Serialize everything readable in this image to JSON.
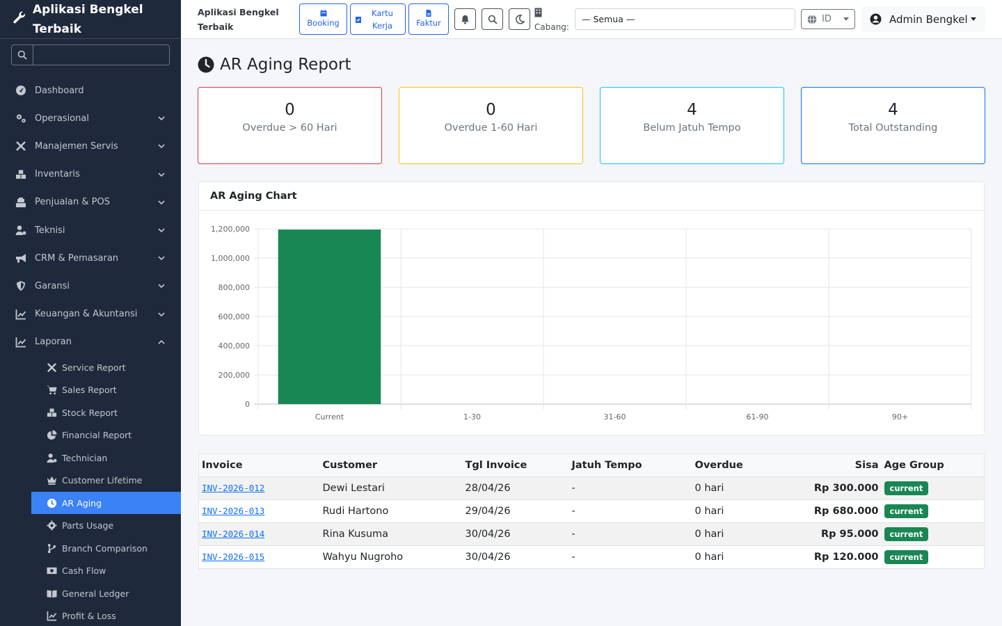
{
  "sidebar": {
    "brand": "Aplikasi Bengkel Terbaik",
    "search_placeholder": "",
    "items": [
      {
        "label": "Dashboard"
      },
      {
        "label": "Operasional"
      },
      {
        "label": "Manajemen Servis"
      },
      {
        "label": "Inventaris"
      },
      {
        "label": "Penjualan & POS"
      },
      {
        "label": "Teknisi"
      },
      {
        "label": "CRM & Pemasaran"
      },
      {
        "label": "Garansi"
      },
      {
        "label": "Keuangan & Akuntansi"
      },
      {
        "label": "Laporan"
      }
    ],
    "sub_items": [
      {
        "label": "Service Report"
      },
      {
        "label": "Sales Report"
      },
      {
        "label": "Stock Report"
      },
      {
        "label": "Financial Report"
      },
      {
        "label": "Technician"
      },
      {
        "label": "Customer Lifetime"
      },
      {
        "label": "AR Aging"
      },
      {
        "label": "Parts Usage"
      },
      {
        "label": "Branch Comparison"
      },
      {
        "label": "Cash Flow"
      },
      {
        "label": "General Ledger"
      },
      {
        "label": "Profit & Loss"
      }
    ]
  },
  "topbar": {
    "title": "Aplikasi Bengkel Terbaik",
    "quick": [
      {
        "label": "Booking"
      },
      {
        "label": "Kartu Kerja"
      },
      {
        "label": "Faktur"
      }
    ],
    "cabang_label": "Cabang:",
    "cabang_value": "— Semua —",
    "lang": "ID",
    "user": "Admin Bengkel"
  },
  "page": {
    "title": "AR Aging Report",
    "stats": [
      {
        "value": "0",
        "label": "Overdue > 60 Hari",
        "color": "#dc3545"
      },
      {
        "value": "0",
        "label": "Overdue 1-60 Hari",
        "color": "#ffc107"
      },
      {
        "value": "4",
        "label": "Belum Jatuh Tempo",
        "color": "#0dcaf0"
      },
      {
        "value": "4",
        "label": "Total Outstanding",
        "color": "#0d6efd"
      }
    ],
    "chart_title": "AR Aging Chart"
  },
  "chart_data": {
    "type": "bar",
    "categories": [
      "Current",
      "1-30",
      "31-60",
      "61-90",
      "90+"
    ],
    "values": [
      1195000,
      0,
      0,
      0,
      0
    ],
    "ylim": [
      0,
      1200000
    ],
    "yticks": [
      "0",
      "200,000",
      "400,000",
      "600,000",
      "800,000",
      "1,000,000",
      "1,200,000"
    ],
    "bar_color": "#198754",
    "grid": true
  },
  "table": {
    "headers": [
      "Invoice",
      "Customer",
      "Tgl Invoice",
      "Jatuh Tempo",
      "Overdue",
      "Sisa",
      "Age Group"
    ],
    "rows": [
      {
        "invoice": "INV-2026-012",
        "customer": "Dewi Lestari",
        "tgl": "28/04/26",
        "jatuh": "-",
        "overdue": "0 hari",
        "sisa": "Rp 300.000",
        "age": "current"
      },
      {
        "invoice": "INV-2026-013",
        "customer": "Rudi Hartono",
        "tgl": "29/04/26",
        "jatuh": "-",
        "overdue": "0 hari",
        "sisa": "Rp 680.000",
        "age": "current"
      },
      {
        "invoice": "INV-2026-014",
        "customer": "Rina Kusuma",
        "tgl": "30/04/26",
        "jatuh": "-",
        "overdue": "0 hari",
        "sisa": "Rp 95.000",
        "age": "current"
      },
      {
        "invoice": "INV-2026-015",
        "customer": "Wahyu Nugroho",
        "tgl": "30/04/26",
        "jatuh": "-",
        "overdue": "0 hari",
        "sisa": "Rp 120.000",
        "age": "current"
      }
    ]
  }
}
